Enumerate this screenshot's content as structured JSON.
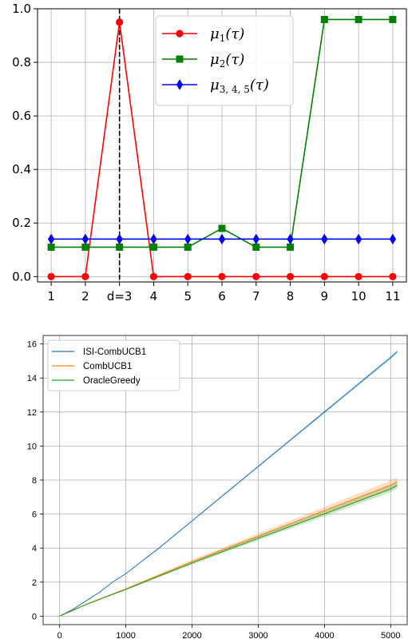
{
  "chart_data": [
    {
      "type": "line",
      "title": "",
      "xlabel": "",
      "ylabel": "",
      "x": [
        1,
        2,
        3,
        4,
        5,
        6,
        7,
        8,
        9,
        10,
        11
      ],
      "x_tick_labels": [
        "1",
        "2",
        "d=3",
        "4",
        "5",
        "6",
        "7",
        "8",
        "9",
        "10",
        "11"
      ],
      "y_tick_labels": [
        "0.0",
        "0.2",
        "0.4",
        "0.6",
        "0.8",
        "1.0"
      ],
      "xlim": [
        0.6,
        11.4
      ],
      "ylim": [
        -0.02,
        1.0
      ],
      "grid": true,
      "legend_position": "top-center",
      "vertical_marker": {
        "x": 3,
        "style": "dashed",
        "color": "#000000"
      },
      "series": [
        {
          "name": "μ1(τ)",
          "name_base": "μ",
          "name_sub": "1",
          "name_suffix": "(τ)",
          "color": "#ff0000",
          "marker": "circle",
          "values": [
            0,
            0,
            0.95,
            0,
            0,
            0,
            0,
            0,
            0,
            0,
            0
          ]
        },
        {
          "name": "μ2(τ)",
          "name_base": "μ",
          "name_sub": "2",
          "name_suffix": "(τ)",
          "color": "#008000",
          "marker": "square",
          "values": [
            0.11,
            0.11,
            0.11,
            0.11,
            0.11,
            0.18,
            0.11,
            0.11,
            0.96,
            0.96,
            0.96
          ]
        },
        {
          "name": "μ3, 4, 5(τ)",
          "name_base": "μ",
          "name_sub": "3, 4, 5",
          "name_suffix": "(τ)",
          "color": "#0000ff",
          "marker": "diamond",
          "values": [
            0.14,
            0.14,
            0.14,
            0.14,
            0.14,
            0.14,
            0.14,
            0.14,
            0.14,
            0.14,
            0.14
          ]
        }
      ]
    },
    {
      "type": "line",
      "title": "",
      "xlabel": "",
      "ylabel": "",
      "x_ticks": [
        0,
        1000,
        2000,
        3000,
        4000,
        5000
      ],
      "y_ticks": [
        0,
        2,
        4,
        6,
        8,
        10,
        12,
        14,
        16
      ],
      "xlim": [
        -250,
        5250
      ],
      "ylim": [
        -0.5,
        16.5
      ],
      "grid": true,
      "legend_position": "top-left",
      "series": [
        {
          "name": "ISI-CombUCB1",
          "color": "#1f77b4",
          "x": [
            0,
            200,
            400,
            600,
            800,
            1000,
            1500,
            2000,
            2500,
            3000,
            3500,
            4000,
            4500,
            5000,
            5100
          ],
          "values": [
            0,
            0.4,
            0.9,
            1.4,
            2.0,
            2.5,
            4.0,
            5.6,
            7.2,
            8.8,
            10.4,
            12.0,
            13.6,
            15.2,
            15.55
          ],
          "band": 0.1
        },
        {
          "name": "CombUCB1",
          "color": "#ff7f0e",
          "x": [
            0,
            200,
            400,
            600,
            800,
            1000,
            1500,
            2000,
            2500,
            3000,
            3500,
            4000,
            4500,
            5000,
            5100
          ],
          "values": [
            0,
            0.35,
            0.7,
            1.0,
            1.3,
            1.6,
            2.4,
            3.2,
            3.95,
            4.7,
            5.45,
            6.2,
            6.95,
            7.7,
            7.9
          ],
          "band": 0.28
        },
        {
          "name": "OracleGreedy",
          "color": "#2ca02c",
          "x": [
            0,
            200,
            400,
            600,
            800,
            1000,
            1500,
            2000,
            2500,
            3000,
            3500,
            4000,
            4500,
            5000,
            5100
          ],
          "values": [
            0,
            0.34,
            0.68,
            0.98,
            1.28,
            1.57,
            2.35,
            3.12,
            3.85,
            4.58,
            5.3,
            6.02,
            6.75,
            7.48,
            7.7
          ],
          "band": 0.2
        }
      ]
    }
  ]
}
